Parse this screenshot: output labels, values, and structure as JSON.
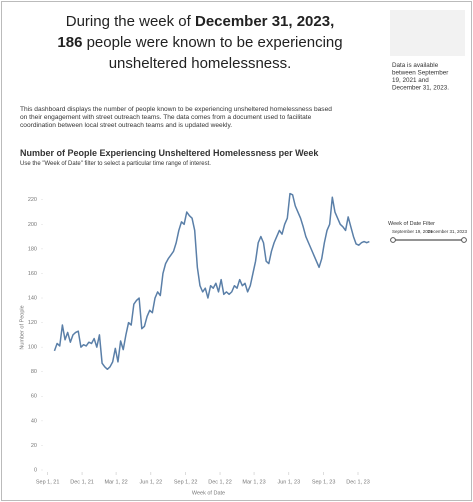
{
  "headline": {
    "lines": [
      [
        "During the week of ",
        "December 31, 2023,"
      ],
      [
        "186",
        " people were known to be experiencing"
      ],
      [
        "unsheltered homelessness."
      ]
    ]
  },
  "side_note": {
    "lines": [
      "Data is available",
      "between September",
      "19, 2021 and",
      "December 31, 2023."
    ]
  },
  "description": {
    "lines": [
      "This dashboard displays the number of people known to be experiencing unsheltered homelessness based",
      "on their engagement with street outreach teams. The data comes from a document used to facilitate",
      "coordination between local street outreach teams and is updated weekly."
    ]
  },
  "filter": {
    "title": "Week of Date Filter",
    "start": "September 19, 2021",
    "end": "December 31, 2023"
  },
  "chart_data": {
    "type": "line",
    "title": "Number of People Experiencing Unsheltered Homelessness per Week",
    "subtitle": "Use the \"Week of Date\" filter to select a particular time range of interest.",
    "x_label": "Week of Date",
    "y_label": "Number of People",
    "x": [
      "2021-09-19",
      "2021-09-26",
      "2021-10-03",
      "2021-10-10",
      "2021-10-17",
      "2021-10-24",
      "2021-10-31",
      "2021-11-07",
      "2021-11-14",
      "2021-11-21",
      "2021-11-28",
      "2021-12-05",
      "2021-12-12",
      "2021-12-19",
      "2021-12-26",
      "2022-01-02",
      "2022-01-09",
      "2022-01-16",
      "2022-01-23",
      "2022-01-30",
      "2022-02-06",
      "2022-02-13",
      "2022-02-20",
      "2022-02-27",
      "2022-03-06",
      "2022-03-13",
      "2022-03-20",
      "2022-03-27",
      "2022-04-03",
      "2022-04-10",
      "2022-04-17",
      "2022-04-24",
      "2022-05-01",
      "2022-05-08",
      "2022-05-15",
      "2022-05-22",
      "2022-05-29",
      "2022-06-05",
      "2022-06-12",
      "2022-06-19",
      "2022-06-26",
      "2022-07-03",
      "2022-07-10",
      "2022-07-17",
      "2022-07-24",
      "2022-07-31",
      "2022-08-07",
      "2022-08-14",
      "2022-08-21",
      "2022-08-28",
      "2022-09-04",
      "2022-09-11",
      "2022-09-18",
      "2022-09-25",
      "2022-10-02",
      "2022-10-09",
      "2022-10-16",
      "2022-10-23",
      "2022-10-30",
      "2022-11-06",
      "2022-11-13",
      "2022-11-20",
      "2022-11-27",
      "2022-12-04",
      "2022-12-11",
      "2022-12-18",
      "2022-12-25",
      "2023-01-01",
      "2023-01-08",
      "2023-01-15",
      "2023-01-22",
      "2023-01-29",
      "2023-02-05",
      "2023-02-12",
      "2023-02-19",
      "2023-02-26",
      "2023-03-05",
      "2023-03-12",
      "2023-03-19",
      "2023-03-26",
      "2023-04-02",
      "2023-04-09",
      "2023-04-16",
      "2023-04-23",
      "2023-04-30",
      "2023-05-07",
      "2023-05-14",
      "2023-05-21",
      "2023-05-28",
      "2023-06-04",
      "2023-06-11",
      "2023-06-18",
      "2023-06-25",
      "2023-07-02",
      "2023-07-09",
      "2023-07-16",
      "2023-07-23",
      "2023-07-30",
      "2023-08-06",
      "2023-08-13",
      "2023-08-20",
      "2023-08-27",
      "2023-09-03",
      "2023-09-10",
      "2023-09-17",
      "2023-09-24",
      "2023-10-01",
      "2023-10-08",
      "2023-10-15",
      "2023-10-22",
      "2023-10-29",
      "2023-11-05",
      "2023-11-12",
      "2023-11-19",
      "2023-11-26",
      "2023-12-03",
      "2023-12-10",
      "2023-12-17",
      "2023-12-24",
      "2023-12-31"
    ],
    "series": [
      {
        "color": "#5a7fa8",
        "values": [
          97,
          103,
          101,
          118,
          106,
          112,
          104,
          110,
          112,
          113,
          100,
          102,
          101,
          104,
          103,
          107,
          100,
          110,
          87,
          84,
          82,
          84,
          88,
          99,
          88,
          105,
          98,
          110,
          120,
          118,
          135,
          138,
          140,
          115,
          117,
          125,
          130,
          128,
          140,
          145,
          142,
          160,
          168,
          172,
          175,
          178,
          185,
          195,
          202,
          200,
          210,
          207,
          205,
          195,
          165,
          150,
          145,
          148,
          140,
          150,
          148,
          152,
          145,
          155,
          143,
          145,
          143,
          145,
          150,
          148,
          155,
          150,
          152,
          145,
          150,
          160,
          170,
          185,
          190,
          185,
          170,
          168,
          178,
          185,
          190,
          195,
          192,
          200,
          205,
          225,
          224,
          215,
          210,
          205,
          198,
          190,
          185,
          180,
          175,
          170,
          165,
          172,
          185,
          195,
          200,
          222,
          210,
          205,
          200,
          198,
          195,
          206,
          198,
          190,
          184,
          183,
          185,
          186,
          185,
          186
        ]
      }
    ],
    "xlim": [
      "2021-08-25",
      "2024-01-07"
    ],
    "xticks": [
      {
        "value": "2021-09-01",
        "label": "Sep 1, 21"
      },
      {
        "value": "2021-12-01",
        "label": "Dec 1, 21"
      },
      {
        "value": "2022-03-01",
        "label": "Mar 1, 22"
      },
      {
        "value": "2022-06-01",
        "label": "Jun 1, 22"
      },
      {
        "value": "2022-09-01",
        "label": "Sep 1, 22"
      },
      {
        "value": "2022-12-01",
        "label": "Dec 1, 22"
      },
      {
        "value": "2023-03-01",
        "label": "Mar 1, 23"
      },
      {
        "value": "2023-06-01",
        "label": "Jun 1, 23"
      },
      {
        "value": "2023-09-01",
        "label": "Sep 1, 23"
      },
      {
        "value": "2023-12-01",
        "label": "Dec 1, 23"
      }
    ],
    "ylim": [
      0,
      232
    ],
    "yticks": [
      0,
      20,
      40,
      60,
      80,
      100,
      120,
      140,
      160,
      180,
      200,
      220
    ],
    "grid": false
  }
}
